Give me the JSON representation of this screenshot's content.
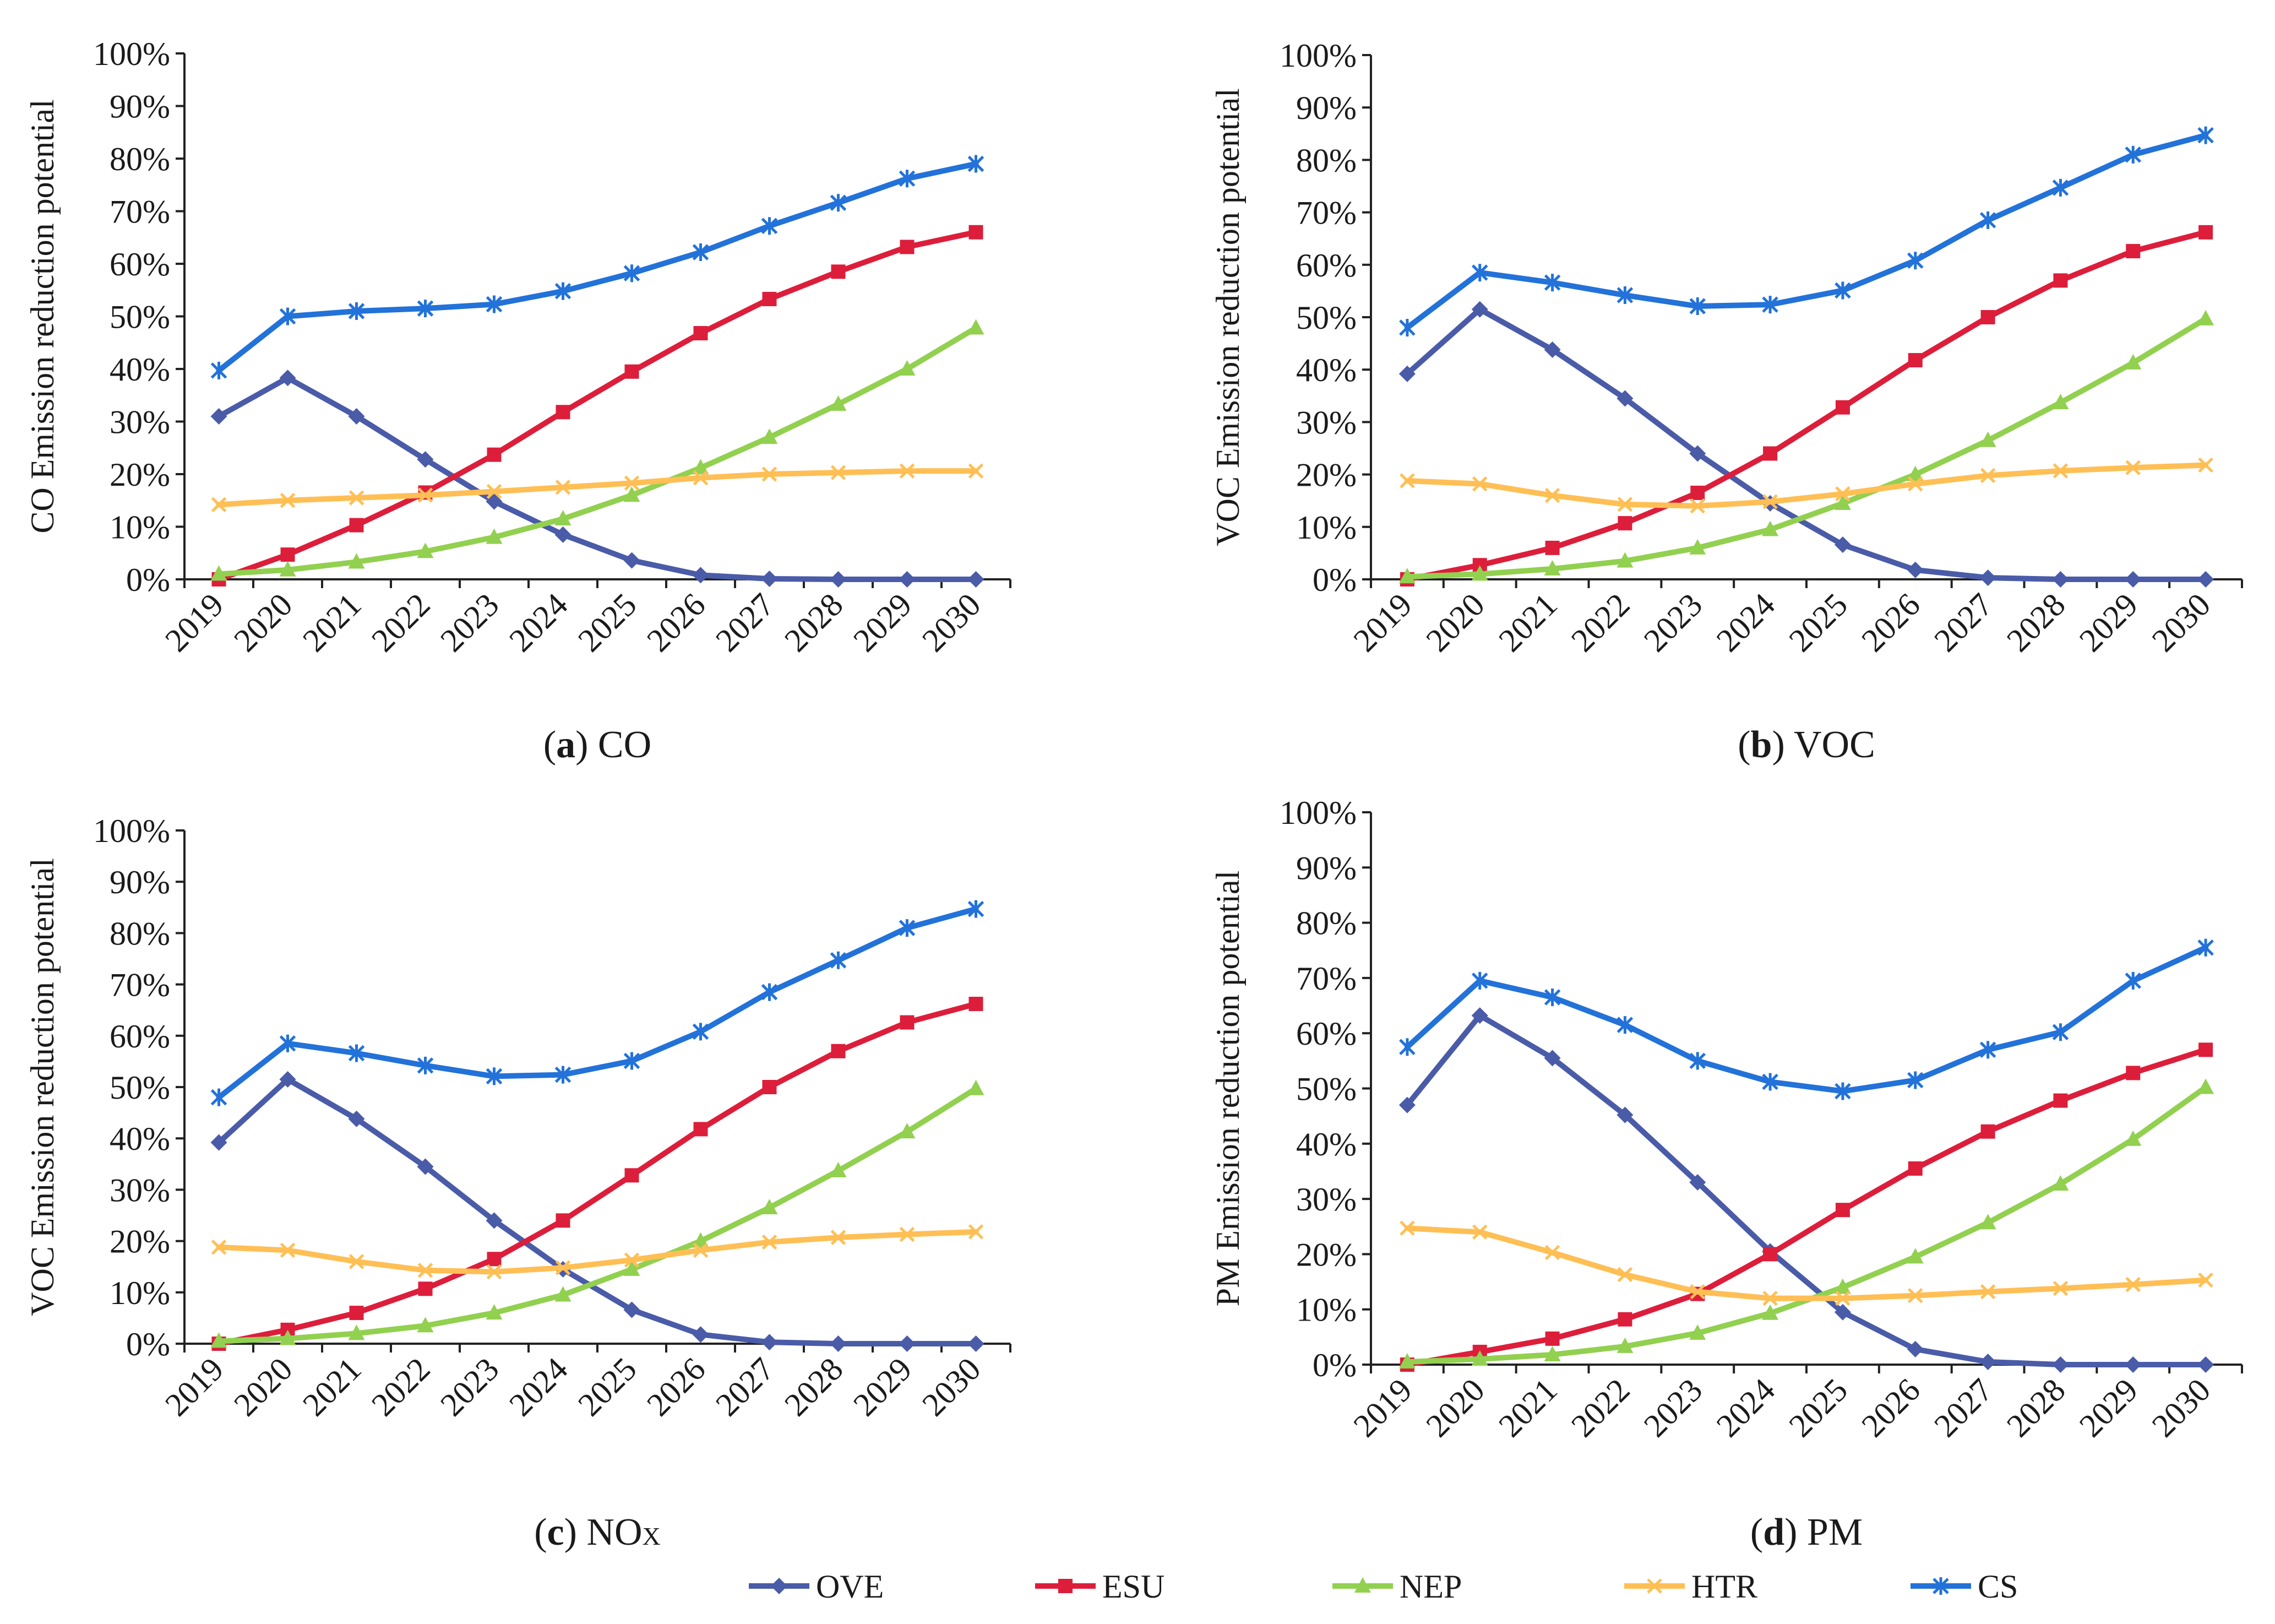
{
  "legend": {
    "items": [
      {
        "name": "OVE",
        "color": "#4a5ba8",
        "marker": "diamond"
      },
      {
        "name": "ESU",
        "color": "#dc1e3b",
        "marker": "square"
      },
      {
        "name": "NEP",
        "color": "#92d050",
        "marker": "triangle"
      },
      {
        "name": "HTR",
        "color": "#ffbf55",
        "marker": "x"
      },
      {
        "name": "CS",
        "color": "#2272d9",
        "marker": "star"
      }
    ]
  },
  "chart_data": [
    {
      "type": "line",
      "caption_letter": "a",
      "caption_text": " CO",
      "ylabel": "CO Emission reduction potential",
      "ylim": [
        0,
        1
      ],
      "yticks": [
        "0%",
        "10%",
        "20%",
        "30%",
        "40%",
        "50%",
        "60%",
        "70%",
        "80%",
        "90%",
        "100%"
      ],
      "categories": [
        "2019",
        "2020",
        "2021",
        "2022",
        "2023",
        "2024",
        "2025",
        "2026",
        "2027",
        "2028",
        "2029",
        "2030"
      ],
      "series": [
        {
          "name": "OVE",
          "values": [
            0.31,
            0.383,
            0.31,
            0.228,
            0.148,
            0.085,
            0.036,
            0.008,
            0.001,
            0,
            0,
            0
          ]
        },
        {
          "name": "ESU",
          "values": [
            0,
            0.047,
            0.103,
            0.165,
            0.237,
            0.318,
            0.395,
            0.468,
            0.533,
            0.585,
            0.632,
            0.66
          ]
        },
        {
          "name": "NEP",
          "values": [
            0.01,
            0.018,
            0.033,
            0.053,
            0.08,
            0.115,
            0.16,
            0.212,
            0.27,
            0.333,
            0.4,
            0.478
          ]
        },
        {
          "name": "HTR",
          "values": [
            0.142,
            0.15,
            0.155,
            0.16,
            0.167,
            0.175,
            0.183,
            0.193,
            0.2,
            0.203,
            0.206,
            0.206
          ]
        },
        {
          "name": "CS",
          "values": [
            0.397,
            0.5,
            0.51,
            0.515,
            0.523,
            0.548,
            0.582,
            0.622,
            0.672,
            0.716,
            0.762,
            0.79
          ]
        }
      ]
    },
    {
      "type": "line",
      "caption_letter": "b",
      "caption_text": " VOC",
      "ylabel": "VOC Emission reduction potential",
      "ylim": [
        0,
        1
      ],
      "yticks": [
        "0%",
        "10%",
        "20%",
        "30%",
        "40%",
        "50%",
        "60%",
        "70%",
        "80%",
        "90%",
        "100%"
      ],
      "categories": [
        "2019",
        "2020",
        "2021",
        "2022",
        "2023",
        "2024",
        "2025",
        "2026",
        "2027",
        "2028",
        "2029",
        "2030"
      ],
      "series": [
        {
          "name": "OVE",
          "values": [
            0.392,
            0.515,
            0.438,
            0.345,
            0.24,
            0.145,
            0.066,
            0.018,
            0.003,
            0,
            0,
            0
          ]
        },
        {
          "name": "ESU",
          "values": [
            0,
            0.027,
            0.06,
            0.107,
            0.165,
            0.24,
            0.328,
            0.418,
            0.5,
            0.57,
            0.626,
            0.662
          ]
        },
        {
          "name": "NEP",
          "values": [
            0.005,
            0.01,
            0.02,
            0.035,
            0.06,
            0.095,
            0.145,
            0.2,
            0.265,
            0.337,
            0.413,
            0.497
          ]
        },
        {
          "name": "HTR",
          "values": [
            0.188,
            0.182,
            0.16,
            0.143,
            0.14,
            0.148,
            0.163,
            0.182,
            0.198,
            0.207,
            0.213,
            0.218
          ]
        },
        {
          "name": "CS",
          "values": [
            0.48,
            0.585,
            0.566,
            0.542,
            0.521,
            0.524,
            0.551,
            0.608,
            0.685,
            0.747,
            0.81,
            0.847
          ]
        }
      ]
    },
    {
      "type": "line",
      "caption_letter": "c",
      "caption_text": " NO",
      "caption_sub": "X",
      "ylabel": "VOC Emission reduction potential",
      "ylim": [
        0,
        1
      ],
      "yticks": [
        "0%",
        "10%",
        "20%",
        "30%",
        "40%",
        "50%",
        "60%",
        "70%",
        "80%",
        "90%",
        "100%"
      ],
      "categories": [
        "2019",
        "2020",
        "2021",
        "2022",
        "2023",
        "2024",
        "2025",
        "2026",
        "2027",
        "2028",
        "2029",
        "2030"
      ],
      "series": [
        {
          "name": "OVE",
          "values": [
            0.392,
            0.515,
            0.438,
            0.345,
            0.24,
            0.145,
            0.066,
            0.018,
            0.003,
            0,
            0,
            0
          ]
        },
        {
          "name": "ESU",
          "values": [
            0,
            0.027,
            0.06,
            0.107,
            0.165,
            0.24,
            0.328,
            0.418,
            0.5,
            0.57,
            0.626,
            0.662
          ]
        },
        {
          "name": "NEP",
          "values": [
            0.005,
            0.01,
            0.02,
            0.035,
            0.06,
            0.095,
            0.145,
            0.2,
            0.265,
            0.337,
            0.413,
            0.497
          ]
        },
        {
          "name": "HTR",
          "values": [
            0.188,
            0.182,
            0.16,
            0.143,
            0.14,
            0.148,
            0.163,
            0.182,
            0.198,
            0.207,
            0.213,
            0.218
          ]
        },
        {
          "name": "CS",
          "values": [
            0.48,
            0.585,
            0.566,
            0.542,
            0.521,
            0.524,
            0.551,
            0.608,
            0.685,
            0.747,
            0.81,
            0.847
          ]
        }
      ]
    },
    {
      "type": "line",
      "caption_letter": "d",
      "caption_text": " PM",
      "ylabel": "PM Emission reduction potential",
      "ylim": [
        0,
        1
      ],
      "yticks": [
        "0%",
        "10%",
        "20%",
        "30%",
        "40%",
        "50%",
        "60%",
        "70%",
        "80%",
        "90%",
        "100%"
      ],
      "categories": [
        "2019",
        "2020",
        "2021",
        "2022",
        "2023",
        "2024",
        "2025",
        "2026",
        "2027",
        "2028",
        "2029",
        "2030"
      ],
      "series": [
        {
          "name": "OVE",
          "values": [
            0.47,
            0.632,
            0.555,
            0.452,
            0.33,
            0.205,
            0.095,
            0.028,
            0.005,
            0,
            0,
            0
          ]
        },
        {
          "name": "ESU",
          "values": [
            0,
            0.023,
            0.047,
            0.082,
            0.128,
            0.2,
            0.28,
            0.355,
            0.422,
            0.478,
            0.528,
            0.57
          ]
        },
        {
          "name": "NEP",
          "values": [
            0.005,
            0.01,
            0.018,
            0.033,
            0.057,
            0.093,
            0.14,
            0.195,
            0.257,
            0.327,
            0.408,
            0.502
          ]
        },
        {
          "name": "HTR",
          "values": [
            0.247,
            0.24,
            0.203,
            0.163,
            0.132,
            0.12,
            0.12,
            0.125,
            0.132,
            0.138,
            0.145,
            0.153
          ]
        },
        {
          "name": "CS",
          "values": [
            0.575,
            0.695,
            0.665,
            0.615,
            0.55,
            0.512,
            0.495,
            0.515,
            0.57,
            0.602,
            0.695,
            0.755
          ]
        }
      ]
    }
  ]
}
